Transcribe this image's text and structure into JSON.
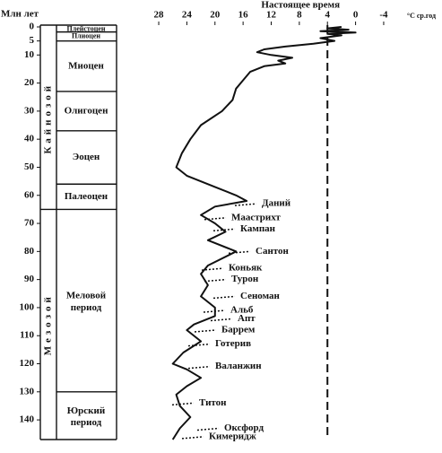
{
  "chart_data": {
    "type": "line",
    "x_label": "Млн лет",
    "y_label": "°C ср.год",
    "x": [
      0,
      0.5,
      1,
      1.5,
      2,
      2.5,
      3,
      4,
      5,
      6,
      7,
      8,
      9,
      10,
      11,
      12,
      13,
      14,
      16,
      19,
      22,
      26,
      30,
      35,
      40,
      45,
      50,
      53,
      57,
      60,
      62,
      64,
      67,
      70,
      73,
      76,
      80,
      85,
      88,
      92,
      96,
      100,
      103,
      106,
      108,
      112,
      116,
      120,
      122,
      125,
      128,
      131,
      135,
      139,
      143,
      147
    ],
    "series": [
      {
        "color": "#111111",
        "values": [
          2,
          4,
          1,
          5,
          0,
          4,
          2,
          5,
          3,
          6,
          10,
          13,
          14,
          12,
          9,
          11,
          10,
          13,
          15,
          16,
          17,
          17.5,
          19,
          22,
          23.5,
          24.7,
          25.5,
          24,
          20,
          17,
          15.5,
          20,
          22,
          20,
          18.5,
          21,
          17,
          21,
          22,
          21,
          22,
          20,
          20,
          23,
          24,
          22,
          24.5,
          26,
          24,
          22,
          24,
          25.5,
          25,
          23.5,
          25,
          26
        ]
      }
    ],
    "xlim": [
      0,
      147
    ],
    "xticks": [
      0,
      5,
      10,
      20,
      30,
      40,
      50,
      60,
      70,
      80,
      90,
      100,
      110,
      120,
      130,
      140
    ],
    "ylim": [
      34,
      -10
    ],
    "yticks": [
      28,
      24,
      20,
      16,
      12,
      8,
      4,
      0,
      -4
    ],
    "present": {
      "label": "Настоящее время",
      "value": 4
    },
    "eras": [
      {
        "label": "Кайнозой",
        "from": 0,
        "to": 65
      },
      {
        "label": "Мезозой",
        "from": 65,
        "to": 147
      }
    ],
    "periods": [
      {
        "label": "Плейстоцен",
        "from": 0,
        "to": 1.8
      },
      {
        "label": "Плиоцен",
        "from": 1.8,
        "to": 5
      },
      {
        "label": "Миоцен",
        "from": 5,
        "to": 23
      },
      {
        "label": "Олигоцен",
        "from": 23,
        "to": 37
      },
      {
        "label": "Эоцен",
        "from": 37,
        "to": 56
      },
      {
        "label": "Палеоцен",
        "from": 56,
        "to": 65
      },
      {
        "label": "Меловой период",
        "from": 65,
        "to": 130
      },
      {
        "label": "Юрский период",
        "from": 130,
        "to": 147
      }
    ],
    "stages": [
      {
        "label": "Даний",
        "age": 63
      },
      {
        "label": "Маастрихт",
        "age": 68
      },
      {
        "label": "Кампан",
        "age": 72
      },
      {
        "label": "Сантон",
        "age": 80
      },
      {
        "label": "Коньяк",
        "age": 86
      },
      {
        "label": "Турон",
        "age": 90
      },
      {
        "label": "Сеноман",
        "age": 96
      },
      {
        "label": "Альб",
        "age": 101
      },
      {
        "label": "Апт",
        "age": 104
      },
      {
        "label": "Баррем",
        "age": 108
      },
      {
        "label": "Готерив",
        "age": 113
      },
      {
        "label": "Валанжин",
        "age": 121
      },
      {
        "label": "Титон",
        "age": 134
      },
      {
        "label": "Оксфорд",
        "age": 143
      },
      {
        "label": "Кимеридж",
        "age": 146
      }
    ]
  }
}
